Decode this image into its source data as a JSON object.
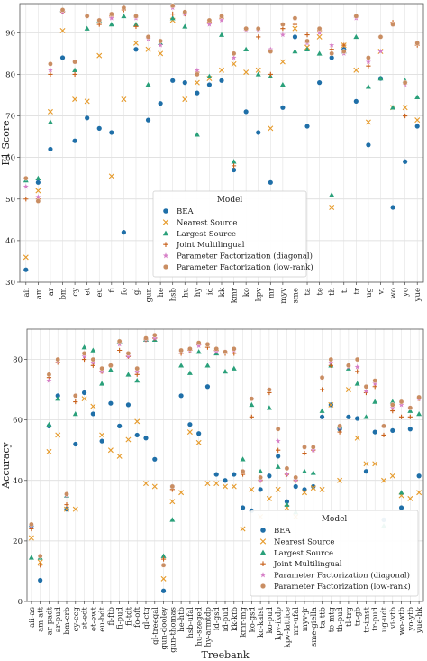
{
  "colors": {
    "BEA": "#1f6fa8",
    "Nearest Source": "#e69a2a",
    "Largest Source": "#2aa07a",
    "Joint Multilingual": "#c8601a",
    "Parameter Factorization (diagonal)": "#d67fc7",
    "Parameter Factorization (low-rank)": "#c98d62"
  },
  "chart_data": [
    {
      "type": "scatter",
      "ylabel": "F1 Score",
      "xlabel": "Language",
      "ylim": [
        30,
        97
      ],
      "yticks": [
        30,
        40,
        50,
        60,
        70,
        80,
        90
      ],
      "legend_title": "Model",
      "legend_position": "lower-center",
      "categories": [
        "aii",
        "am",
        "ar",
        "bm",
        "cy",
        "et",
        "eu",
        "fi",
        "fo",
        "gl",
        "gun",
        "he",
        "hsb",
        "hu",
        "hy",
        "id",
        "kk",
        "kmr",
        "ko",
        "kpv",
        "mr",
        "myv",
        "sme",
        "ta",
        "te",
        "th",
        "tl",
        "tr",
        "ug",
        "vi",
        "wo",
        "yo",
        "yue"
      ],
      "series": [
        {
          "name": "BEA",
          "marker": "circle",
          "values": [
            33,
            54,
            62,
            84,
            64,
            69.5,
            67,
            66,
            42,
            86,
            69,
            73,
            78.5,
            78,
            75.5,
            77.5,
            78.5,
            57,
            71,
            66,
            54,
            72,
            89,
            67.5,
            78,
            84,
            86,
            73.5,
            63,
            79,
            48,
            59,
            67.5
          ]
        },
        {
          "name": "Nearest Source",
          "marker": "x",
          "values": [
            36,
            52,
            71,
            90.5,
            74,
            73.5,
            84.5,
            55.5,
            74,
            87.5,
            86,
            85,
            93,
            74,
            78,
            79,
            81,
            82.5,
            80.5,
            81,
            67,
            83,
            91,
            86.5,
            89,
            48,
            87,
            81,
            68.5,
            85.5,
            72,
            72,
            69
          ]
        },
        {
          "name": "Largest Source",
          "marker": "triangle",
          "values": [
            54.5,
            55,
            68.5,
            95.5,
            81,
            91,
            93,
            92,
            94,
            92,
            77.5,
            87.5,
            93.5,
            91.5,
            65.5,
            79.5,
            89.5,
            59,
            86,
            80,
            79.5,
            77.5,
            85.5,
            86,
            85,
            51,
            85.5,
            89,
            77,
            79,
            72,
            78.5,
            74.5
          ]
        },
        {
          "name": "Joint Multilingual",
          "marker": "plus",
          "values": [
            50,
            50,
            80,
            95,
            80,
            94,
            92,
            94,
            95.5,
            91.5,
            89,
            88,
            94.5,
            94.5,
            80.5,
            92.5,
            93.5,
            58,
            91,
            89,
            80,
            91,
            92,
            89.5,
            90.5,
            86,
            87,
            94,
            82,
            89,
            92.5,
            70,
            87
          ]
        },
        {
          "name": "Parameter Factorization (diagonal)",
          "marker": "star",
          "values": [
            53,
            50.5,
            81,
            95,
            83,
            94,
            93,
            93.5,
            96,
            93.5,
            88.5,
            87,
            96,
            94.5,
            81,
            92,
            93,
            84,
            90.5,
            90.5,
            86,
            89.5,
            93.5,
            87.5,
            90,
            87,
            85,
            93.5,
            83,
            85.5,
            92,
            77.5,
            87.5
          ]
        },
        {
          "name": "Parameter Factorization (low-rank)",
          "marker": "circle-filled",
          "values": [
            55,
            49.5,
            82.5,
            95.5,
            83,
            94,
            93,
            94.5,
            96,
            94,
            89,
            88,
            96.5,
            95,
            80,
            93,
            94,
            85,
            91,
            91,
            85.5,
            92,
            93.5,
            88,
            91,
            85,
            85.5,
            94,
            84,
            89,
            92,
            78,
            87.5
          ]
        }
      ]
    },
    {
      "type": "scatter",
      "ylabel": "Accuracy",
      "xlabel": "Treebank",
      "ylim": [
        0,
        90
      ],
      "yticks": [
        0,
        20,
        40,
        60,
        80
      ],
      "legend_title": "Model",
      "legend_position": "lower-right",
      "categories": [
        "aii-as",
        "am-att",
        "ar-padt",
        "ar-pud",
        "bm-crb",
        "cy-ccg",
        "et-edt",
        "et-ewt",
        "eu-bdt",
        "fi-ftb",
        "fi-pud",
        "fi-tdt",
        "fo-oft",
        "gl-ctg",
        "gl-treegal",
        "gun-dooley",
        "gun-thomas",
        "he-htb",
        "hsb-ufal",
        "hu-szeged",
        "hy-armtdp",
        "id-gsd",
        "id-pud",
        "kk-ktb",
        "kmr-mg",
        "ko-gsd",
        "ko-kaist",
        "ko-pud",
        "kpv-ikdp",
        "kpv-lattice",
        "mr-ufal",
        "myv-jr",
        "sme-giella",
        "ta-ttb",
        "te-mtg",
        "th-pud",
        "tl-trg",
        "tr-gb",
        "tr-imst",
        "tr-pud",
        "ug-udt",
        "vi-vtb",
        "wo-wtb",
        "yo-ytb",
        "yue-hk"
      ],
      "series": [
        {
          "name": "BEA",
          "marker": "circle",
          "values": [
            25,
            7,
            58,
            68,
            30.5,
            52,
            69,
            62,
            53,
            65.5,
            58,
            65,
            55,
            54,
            47,
            3.5,
            38,
            68,
            58.5,
            55.5,
            71,
            42,
            40,
            42,
            31,
            30,
            37,
            41.5,
            48,
            33,
            38,
            37,
            38,
            61,
            65,
            57,
            61,
            60.5,
            43,
            56,
            27,
            56.5,
            31,
            57,
            41.5
          ]
        },
        {
          "name": "Nearest Source",
          "marker": "x",
          "values": [
            21,
            13,
            49.5,
            55,
            30.5,
            30.5,
            67,
            64.5,
            55,
            50,
            48,
            53.5,
            59.5,
            39,
            38,
            7.5,
            33,
            36,
            56,
            52.5,
            39,
            39,
            38,
            38,
            24,
            37,
            28,
            34,
            37,
            31,
            28,
            36,
            37.5,
            37,
            65,
            40,
            70,
            54,
            45.5,
            45.5,
            40,
            41.5,
            35,
            34,
            36
          ]
        },
        {
          "name": "Largest Source",
          "marker": "triangle",
          "values": [
            14.5,
            14.5,
            58.5,
            67,
            35,
            62,
            84,
            83,
            72,
            76.5,
            86,
            75,
            73,
            86.5,
            86.5,
            15,
            27,
            78,
            75.5,
            82.5,
            78,
            82,
            76,
            77,
            47,
            65,
            43,
            64,
            44.5,
            32,
            29.5,
            43,
            42.5,
            63,
            78,
            58,
            77,
            72,
            61,
            66,
            25,
            66,
            36,
            63,
            62
          ]
        },
        {
          "name": "Joint Multilingual",
          "marker": "plus",
          "values": [
            24,
            12,
            74,
            79,
            32,
            66,
            80,
            78,
            76,
            78,
            83,
            81,
            75,
            86.5,
            87,
            14,
            37,
            82,
            83,
            85,
            84,
            83,
            82,
            82,
            42,
            61,
            40,
            69,
            50,
            42,
            40,
            49,
            50,
            70,
            78,
            56,
            78,
            76,
            69,
            71,
            55,
            63,
            61,
            61,
            67
          ]
        },
        {
          "name": "Parameter Factorization (diagonal)",
          "marker": "star",
          "values": [
            25,
            15,
            73,
            79.5,
            35,
            68,
            81,
            79,
            76,
            78,
            85,
            81,
            76,
            86.5,
            87,
            12,
            38,
            82.5,
            83,
            84.5,
            85,
            82.5,
            82.5,
            83,
            43,
            67,
            40,
            70,
            53,
            42,
            40,
            51,
            50,
            74,
            79,
            57.5,
            77.5,
            77.5,
            69.5,
            72,
            58,
            64,
            65,
            64,
            67
          ]
        },
        {
          "name": "Parameter Factorization (low-rank)",
          "marker": "circle-filled",
          "values": [
            25.5,
            15,
            75,
            80,
            35.5,
            68,
            82,
            80,
            77,
            78,
            86,
            82,
            77,
            87,
            88,
            12,
            38,
            83,
            83.5,
            85.5,
            85,
            83.5,
            82.5,
            83.5,
            43,
            67,
            41,
            70,
            57,
            44,
            41,
            51,
            51,
            74,
            80,
            58,
            78,
            80,
            71,
            73,
            58,
            65,
            66,
            64,
            67.5
          ]
        }
      ]
    }
  ]
}
